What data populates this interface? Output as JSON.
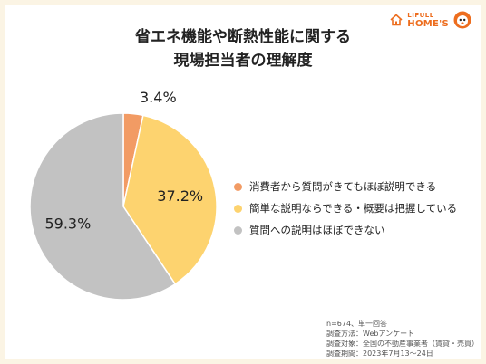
{
  "title": {
    "line1": "省エネ機能や断熱性能に関する",
    "line2": "現場担当者の理解度"
  },
  "logo": {
    "top": "LIFULL",
    "bottom": "HOME'S",
    "house_icon": "house-icon",
    "mascot_icon": "mascot-icon"
  },
  "chart_data": {
    "type": "pie",
    "start_angle_deg": 0,
    "direction": "clockwise",
    "slices": [
      {
        "label": "消費者から質問がきてもほぼ説明できる",
        "value": 3.4,
        "display": "3.4%",
        "color": "#f29b64"
      },
      {
        "label": "簡単な説明ならできる・概要は把握している",
        "value": 37.2,
        "display": "37.2%",
        "color": "#fdd36f"
      },
      {
        "label": "質問への説明はほぼできない",
        "value": 59.3,
        "display": "59.3%",
        "color": "#c2c2c2"
      }
    ],
    "legend_placement": "right"
  },
  "notes": [
    "n=674、単一回答",
    "調査方法：Webアンケート",
    "調査対象：全国の不動産事業者（賃貸・売買）",
    "調査期間：2023年7月13～24日"
  ]
}
